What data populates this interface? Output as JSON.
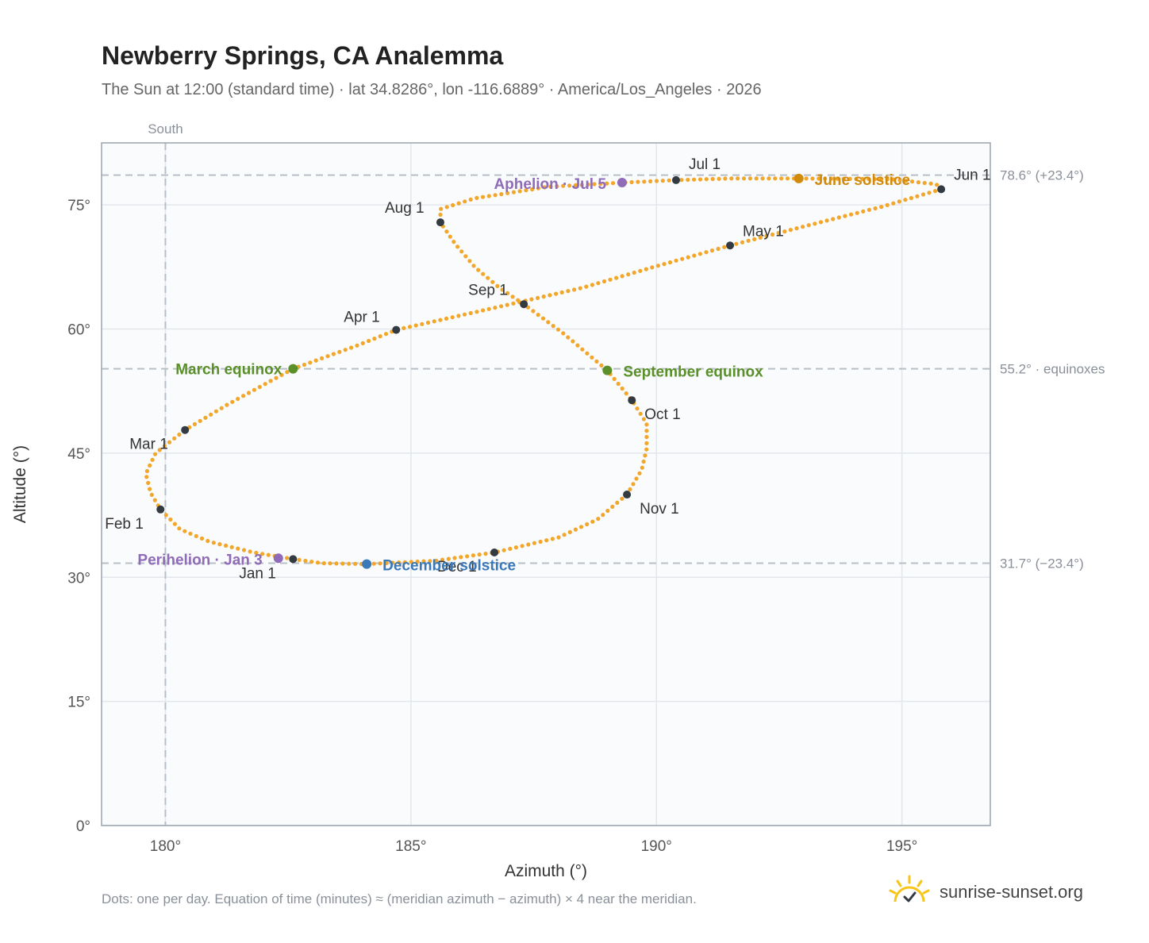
{
  "title": "Newberry Springs, CA Analemma",
  "subtitle": "The Sun at 12:00 (standard time) · lat 34.8286°, lon -116.6889° · America/Los_Angeles · 2026",
  "footnote": "Dots: one per day. Equation of time (minutes) ≈ (meridian azimuth − azimuth) × 4 near the meridian.",
  "brand": {
    "name": "sunrise-sunset.org",
    "icon": "sun-logo-icon"
  },
  "colors": {
    "curve": "#f2a62a",
    "month_marker": "#333a42",
    "equinox": "#5a8f29",
    "june_solstice": "#d18a0c",
    "december_solstice": "#3b78b8",
    "apsis": "#8f6bb8",
    "grid": "#e3e7ec",
    "plot_bg": "#f9fbfd",
    "border": "#9aa3ad",
    "reference_line": "#b8bfc7",
    "axis_text": "#555555",
    "muted_text": "#8a9099"
  },
  "chart_data": {
    "type": "scatter",
    "title": "Newberry Springs, CA Analemma",
    "xlabel": "Azimuth (°)",
    "ylabel": "Altitude (°)",
    "xlim": [
      178.7,
      196.8
    ],
    "ylim": [
      0,
      82.5
    ],
    "x_ticks": [
      180,
      185,
      190,
      195
    ],
    "y_ticks": [
      0,
      15,
      30,
      45,
      60,
      75
    ],
    "x_tick_labels": [
      "180°",
      "185°",
      "190°",
      "195°"
    ],
    "y_tick_labels": [
      "0°",
      "15°",
      "30°",
      "45°",
      "60°",
      "75°"
    ],
    "grid": true,
    "meridian": {
      "azimuth": 180,
      "label": "South"
    },
    "reference_lines": [
      {
        "altitude": 78.6,
        "label": "78.6° (+23.4°)"
      },
      {
        "altitude": 55.2,
        "label": "55.2° · equinoxes"
      },
      {
        "altitude": 31.7,
        "label": "31.7° (−23.4°)"
      }
    ],
    "monthly_points": [
      {
        "label": "Jan 1",
        "azimuth": 182.6,
        "altitude": 32.2
      },
      {
        "label": "Feb 1",
        "azimuth": 179.9,
        "altitude": 38.2
      },
      {
        "label": "Mar 1",
        "azimuth": 180.4,
        "altitude": 47.8
      },
      {
        "label": "Apr 1",
        "azimuth": 184.7,
        "altitude": 59.9
      },
      {
        "label": "May 1",
        "azimuth": 191.5,
        "altitude": 70.1
      },
      {
        "label": "Jun 1",
        "azimuth": 195.8,
        "altitude": 76.9
      },
      {
        "label": "Jul 1",
        "azimuth": 190.4,
        "altitude": 78.0
      },
      {
        "label": "Aug 1",
        "azimuth": 185.6,
        "altitude": 72.9
      },
      {
        "label": "Sep 1",
        "azimuth": 187.3,
        "altitude": 63.0
      },
      {
        "label": "Oct 1",
        "azimuth": 189.5,
        "altitude": 51.4
      },
      {
        "label": "Nov 1",
        "azimuth": 189.4,
        "altitude": 40.0
      },
      {
        "label": "Dec 1",
        "azimuth": 186.7,
        "altitude": 33.0
      }
    ],
    "events": [
      {
        "label": "March equinox",
        "azimuth": 182.6,
        "altitude": 55.2,
        "kind": "equinox"
      },
      {
        "label": "June solstice",
        "azimuth": 192.9,
        "altitude": 78.2,
        "kind": "june_solstice"
      },
      {
        "label": "September equinox",
        "azimuth": 189.0,
        "altitude": 55.0,
        "kind": "equinox"
      },
      {
        "label": "December solstice",
        "azimuth": 184.1,
        "altitude": 31.6,
        "kind": "december_solstice"
      },
      {
        "label": "Perihelion · Jan 3",
        "azimuth": 182.3,
        "altitude": 32.3,
        "kind": "apsis"
      },
      {
        "label": "Aphelion · Jul 5",
        "azimuth": 189.3,
        "altitude": 77.7,
        "kind": "apsis"
      }
    ],
    "daily_path": [
      [
        182.6,
        32.2
      ],
      [
        181.8,
        33.0
      ],
      [
        180.9,
        34.3
      ],
      [
        180.3,
        35.8
      ],
      [
        179.9,
        38.2
      ],
      [
        179.7,
        40.2
      ],
      [
        179.6,
        42.5
      ],
      [
        179.8,
        45.0
      ],
      [
        180.4,
        47.8
      ],
      [
        181.3,
        51.0
      ],
      [
        182.6,
        55.2
      ],
      [
        183.9,
        58.0
      ],
      [
        184.7,
        59.9
      ],
      [
        186.5,
        62.3
      ],
      [
        188.5,
        65.0
      ],
      [
        190.0,
        67.6
      ],
      [
        191.5,
        70.1
      ],
      [
        193.2,
        72.7
      ],
      [
        194.6,
        74.8
      ],
      [
        195.8,
        76.9
      ],
      [
        195.7,
        77.5
      ],
      [
        194.8,
        78.1
      ],
      [
        192.9,
        78.2
      ],
      [
        191.5,
        78.2
      ],
      [
        190.4,
        78.0
      ],
      [
        189.3,
        77.7
      ],
      [
        187.8,
        77.2
      ],
      [
        186.3,
        75.8
      ],
      [
        185.6,
        74.5
      ],
      [
        185.6,
        72.9
      ],
      [
        185.9,
        70.3
      ],
      [
        186.3,
        67.5
      ],
      [
        186.8,
        65.0
      ],
      [
        187.3,
        63.0
      ],
      [
        188.1,
        59.5
      ],
      [
        189.0,
        55.0
      ],
      [
        189.5,
        51.4
      ],
      [
        189.8,
        48.6
      ],
      [
        189.8,
        45.5
      ],
      [
        189.7,
        43.0
      ],
      [
        189.4,
        40.0
      ],
      [
        188.8,
        37.0
      ],
      [
        188.0,
        34.8
      ],
      [
        186.7,
        33.0
      ],
      [
        185.5,
        32.0
      ],
      [
        184.1,
        31.6
      ],
      [
        183.2,
        31.7
      ],
      [
        182.6,
        32.2
      ]
    ]
  }
}
